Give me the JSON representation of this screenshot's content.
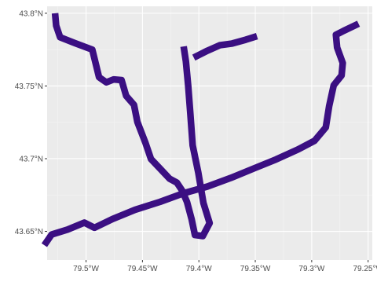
{
  "map": {
    "panel_background": "#ebebeb",
    "grid_major_color": "#ffffff",
    "grid_minor_color": "#f4f4f4",
    "route_color": "#3b0f82",
    "x_ticks": [
      {
        "value": -79.5,
        "label": "79.5°W"
      },
      {
        "value": -79.45,
        "label": "79.45°W"
      },
      {
        "value": -79.4,
        "label": "79.4°W"
      },
      {
        "value": -79.35,
        "label": "79.35°W"
      },
      {
        "value": -79.3,
        "label": "79.3°W"
      },
      {
        "value": -79.25,
        "label": "79.25°W"
      }
    ],
    "y_ticks": [
      {
        "value": 43.65,
        "label": "43.65°N"
      },
      {
        "value": 43.7,
        "label": "43.7°N"
      },
      {
        "value": 43.75,
        "label": "43.75°N"
      },
      {
        "value": 43.8,
        "label": "43.8°N"
      }
    ],
    "xlim": [
      -79.5345,
      -79.2463
    ],
    "ylim": [
      43.6303,
      43.8048
    ],
    "routes": [
      {
        "points": [
          [
            -79.5275,
            43.8
          ],
          [
            -79.5265,
            43.7915
          ],
          [
            -79.523,
            43.7835
          ],
          [
            -79.51,
            43.7795
          ],
          [
            -79.4945,
            43.775
          ],
          [
            -79.4915,
            43.7655
          ],
          [
            -79.4885,
            43.756
          ],
          [
            -79.482,
            43.7525
          ],
          [
            -79.4755,
            43.7545
          ],
          [
            -79.4685,
            43.754
          ],
          [
            -79.4645,
            43.7432
          ],
          [
            -79.4575,
            43.737
          ],
          [
            -79.4545,
            43.7253
          ],
          [
            -79.4475,
            43.7112
          ],
          [
            -79.4425,
            43.6998
          ],
          [
            -79.4345,
            43.6932
          ],
          [
            -79.426,
            43.6862
          ],
          [
            -79.4195,
            43.6835
          ],
          [
            -79.415,
            43.6783
          ],
          [
            -79.4105,
            43.6702
          ],
          [
            -79.4065,
            43.6585
          ],
          [
            -79.4035,
            43.6475
          ],
          [
            -79.3965,
            43.6468
          ],
          [
            -79.3905,
            43.6557
          ],
          [
            -79.396,
            43.6695
          ],
          [
            -79.4005,
            43.6903
          ],
          [
            -79.4055,
            43.7092
          ],
          [
            -79.4075,
            43.7305
          ],
          [
            -79.4095,
            43.7502
          ],
          [
            -79.4115,
            43.7668
          ],
          [
            -79.4135,
            43.7772
          ]
        ]
      },
      {
        "points": [
          [
            -79.4045,
            43.7695
          ],
          [
            -79.3925,
            43.7742
          ],
          [
            -79.3815,
            43.778
          ],
          [
            -79.3705,
            43.7792
          ],
          [
            -79.3585,
            43.7818
          ],
          [
            -79.3485,
            43.7842
          ]
        ]
      },
      {
        "points": [
          [
            -79.537,
            43.6405
          ],
          [
            -79.5305,
            43.6478
          ],
          [
            -79.5165,
            43.6512
          ],
          [
            -79.5015,
            43.656
          ],
          [
            -79.4925,
            43.6525
          ],
          [
            -79.4765,
            43.6585
          ],
          [
            -79.4565,
            43.6648
          ],
          [
            -79.4345,
            43.6703
          ],
          [
            -79.4135,
            43.6762
          ],
          [
            -79.3925,
            43.6808
          ],
          [
            -79.3715,
            43.6868
          ],
          [
            -79.3505,
            43.6935
          ],
          [
            -79.3315,
            43.6995
          ],
          [
            -79.3125,
            43.7062
          ],
          [
            -79.2975,
            43.7123
          ],
          [
            -79.2875,
            43.7215
          ],
          [
            -79.2845,
            43.7362
          ],
          [
            -79.2805,
            43.7505
          ],
          [
            -79.2735,
            43.7572
          ],
          [
            -79.2725,
            43.7658
          ],
          [
            -79.2775,
            43.7765
          ],
          [
            -79.2785,
            43.7852
          ],
          [
            -79.2715,
            43.788
          ],
          [
            -79.2585,
            43.7928
          ]
        ]
      }
    ]
  }
}
